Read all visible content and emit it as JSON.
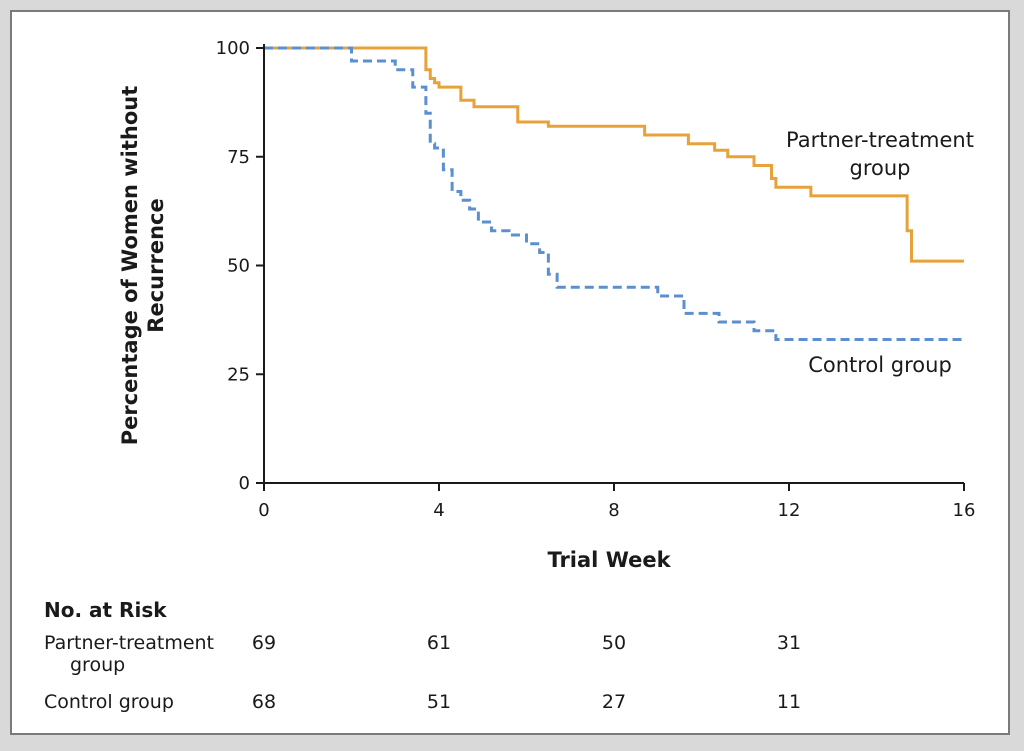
{
  "chart_data": {
    "type": "line",
    "title": "",
    "xlabel": "Trial Week",
    "ylabel": "Percentage of Women without Recurrence",
    "xlim": [
      0,
      16
    ],
    "ylim": [
      0,
      100
    ],
    "xticks": [
      0,
      4,
      8,
      12,
      16
    ],
    "yticks": [
      0,
      25,
      50,
      75,
      100
    ],
    "series": [
      {
        "name": "Partner-treatment group",
        "color": "#e8a23a",
        "style": "solid",
        "x": [
          0,
          3.7,
          3.8,
          3.9,
          4.0,
          4.2,
          4.5,
          4.8,
          5.8,
          6.5,
          8.7,
          9.7,
          10.3,
          10.6,
          11.2,
          11.6,
          11.7,
          12.5,
          14.7,
          14.8,
          16
        ],
        "y": [
          100,
          95,
          93,
          92,
          91,
          91,
          88,
          86.5,
          83,
          82,
          80,
          78,
          76.5,
          75,
          73,
          70,
          68,
          66,
          58,
          51,
          51
        ]
      },
      {
        "name": "Control group",
        "color": "#5b8fd0",
        "style": "dashed",
        "x": [
          0,
          2.0,
          3.0,
          3.4,
          3.7,
          3.8,
          3.9,
          4.1,
          4.3,
          4.5,
          4.7,
          4.9,
          5.2,
          5.6,
          6.0,
          6.3,
          6.5,
          6.7,
          8.8,
          9.0,
          9.6,
          10.4,
          11.2,
          11.7,
          16
        ],
        "y": [
          100,
          97,
          95,
          91,
          85,
          78,
          77,
          72,
          67,
          65,
          63,
          60,
          58,
          57,
          55,
          53,
          48,
          45,
          45,
          43,
          39,
          37,
          35,
          33,
          33
        ]
      }
    ],
    "annotations": [
      {
        "text_lines": [
          "Partner-treatment",
          "group"
        ],
        "series": "Partner-treatment group"
      },
      {
        "text_lines": [
          "Control group"
        ],
        "series": "Control group"
      }
    ]
  },
  "risk_table": {
    "title": "No. at Risk",
    "rows": [
      {
        "label_lines": [
          "Partner-treatment",
          "group"
        ],
        "values": [
          "69",
          "61",
          "50",
          "31"
        ]
      },
      {
        "label_lines": [
          "Control group"
        ],
        "values": [
          "68",
          "51",
          "27",
          "11"
        ]
      }
    ]
  }
}
